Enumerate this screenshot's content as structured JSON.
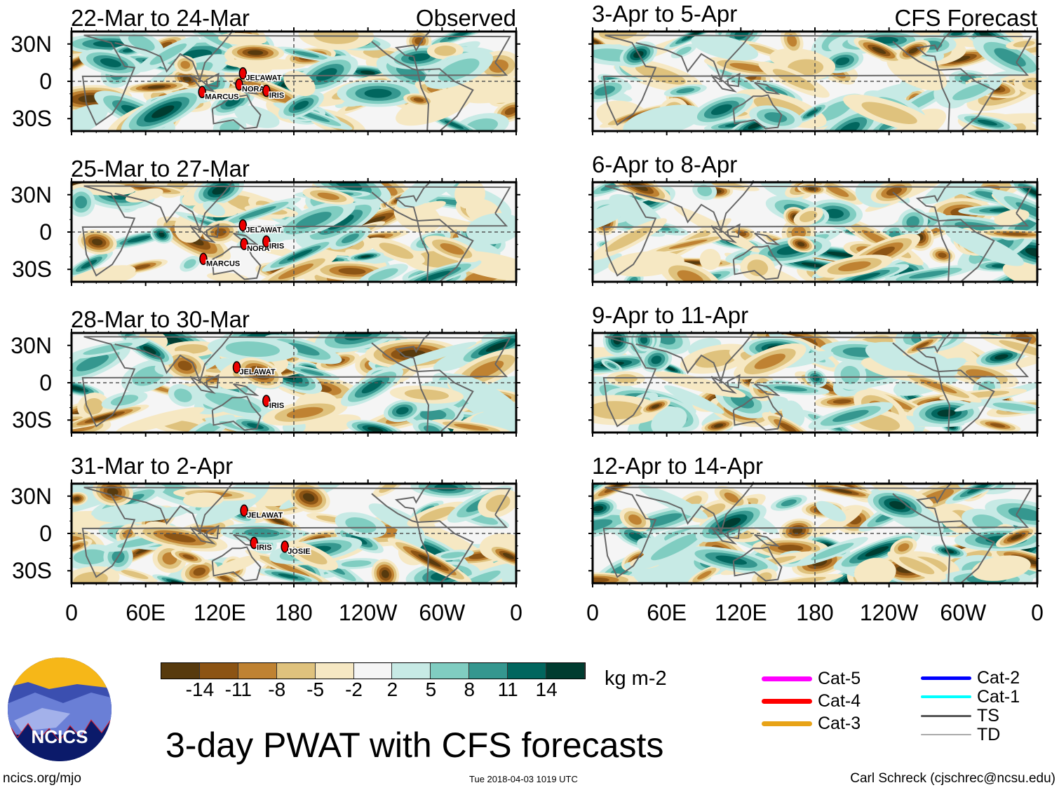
{
  "figure": {
    "title": "3-day PWAT with CFS forecasts",
    "left_header": "Observed",
    "right_header": "CFS Forecast",
    "footer_left": "ncics.org/mjo",
    "footer_center": "Tue 2018-04-03 1019 UTC",
    "footer_right": "Carl Schreck (cjschrec@ncsu.edu)",
    "logo_text": "NCICS"
  },
  "axes": {
    "lat_labels": [
      "30N",
      "0",
      "30S"
    ],
    "lon_labels": [
      "0",
      "60E",
      "120E",
      "180",
      "120W",
      "60W",
      "0"
    ]
  },
  "panels_observed": [
    {
      "title": "22-Mar to 24-Mar",
      "storms": [
        {
          "name": "JELAWAT",
          "lon": 141,
          "lat": 3
        },
        {
          "name": "NORA",
          "lon": 138,
          "lat": -6
        },
        {
          "name": "MARCUS",
          "lon": 108,
          "lat": -12
        },
        {
          "name": "IRIS",
          "lon": 160,
          "lat": -11
        }
      ]
    },
    {
      "title": "25-Mar to 27-Mar",
      "storms": [
        {
          "name": "JELAWAT",
          "lon": 141,
          "lat": 2
        },
        {
          "name": "NORA",
          "lon": 142,
          "lat": -13
        },
        {
          "name": "IRIS",
          "lon": 160,
          "lat": -11
        },
        {
          "name": "MARCUS",
          "lon": 109,
          "lat": -25
        }
      ]
    },
    {
      "title": "28-Mar to 30-Mar",
      "storms": [
        {
          "name": "JELAWAT",
          "lon": 136,
          "lat": 9
        },
        {
          "name": "IRIS",
          "lon": 160,
          "lat": -18
        }
      ]
    },
    {
      "title": "31-Mar to 2-Apr",
      "storms": [
        {
          "name": "JELAWAT",
          "lon": 142,
          "lat": 15
        },
        {
          "name": "IRIS",
          "lon": 150,
          "lat": -11
        },
        {
          "name": "JOSIE",
          "lon": 175,
          "lat": -14
        }
      ]
    }
  ],
  "panels_forecast": [
    {
      "title": "3-Apr to 5-Apr"
    },
    {
      "title": "6-Apr to 8-Apr"
    },
    {
      "title": "9-Apr to 11-Apr"
    },
    {
      "title": "12-Apr to 14-Apr"
    }
  ],
  "colorbar": {
    "units": "kg m-2",
    "labels": [
      "-14",
      "-11",
      "-8",
      "-5",
      "-2",
      "2",
      "5",
      "8",
      "11",
      "14"
    ],
    "colors": [
      "#573a0e",
      "#8c5414",
      "#bf8232",
      "#dfc27d",
      "#f6e8c3",
      "#f5f5f5",
      "#c7eae5",
      "#80cdc1",
      "#35978f",
      "#01665e",
      "#003c30"
    ]
  },
  "storm_legend": [
    {
      "label": "Cat-5",
      "color": "#ff00ff"
    },
    {
      "label": "Cat-4",
      "color": "#ff0000"
    },
    {
      "label": "Cat-3",
      "color": "#e8a317"
    },
    {
      "label": "Cat-2",
      "color": "#0000ff"
    },
    {
      "label": "Cat-1",
      "color": "#00ffff"
    },
    {
      "label": "TS",
      "color": "#555555"
    },
    {
      "label": "TD",
      "color": "#aaaaaa"
    }
  ]
}
